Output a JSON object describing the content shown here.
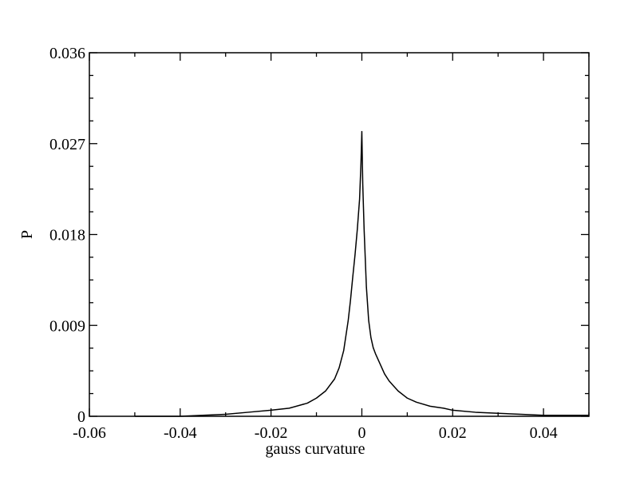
{
  "chart_data": {
    "type": "line",
    "title": "",
    "xlabel": "gauss curvature",
    "ylabel": "P",
    "xlim": [
      -0.06,
      0.05
    ],
    "ylim": [
      0,
      0.036
    ],
    "xticks": [
      -0.06,
      -0.04,
      -0.02,
      0,
      0.02,
      0.04
    ],
    "xtick_labels": [
      "-0.06",
      "-0.04",
      "-0.02",
      "0",
      "0.02",
      "0.04"
    ],
    "yticks": [
      0,
      0.009,
      0.018,
      0.027,
      0.036
    ],
    "ytick_labels": [
      "0",
      "0.009",
      "0.018",
      "0.027",
      "0.036"
    ],
    "grid": false,
    "line_color": "#000000",
    "series": [
      {
        "x": [
          -0.05,
          -0.04,
          -0.035,
          -0.03,
          -0.025,
          -0.02,
          -0.016,
          -0.012,
          -0.01,
          -0.008,
          -0.006,
          -0.005,
          -0.004,
          -0.003,
          -0.0025,
          -0.002,
          -0.0015,
          -0.001,
          -0.0005,
          -0.0002,
          0,
          0.0002,
          0.0005,
          0.001,
          0.0015,
          0.002,
          0.0025,
          0.003,
          0.004,
          0.005,
          0.006,
          0.007,
          0.008,
          0.01,
          0.012,
          0.015,
          0.018,
          0.02,
          0.025,
          0.03,
          0.035,
          0.04,
          0.045,
          0.05
        ],
        "values": [
          0.0,
          0.0,
          0.0001,
          0.0002,
          0.0004,
          0.0006,
          0.0008,
          0.0013,
          0.0018,
          0.0025,
          0.0037,
          0.0048,
          0.0065,
          0.0095,
          0.0115,
          0.0138,
          0.016,
          0.0185,
          0.0215,
          0.025,
          0.0282,
          0.023,
          0.0185,
          0.0128,
          0.0095,
          0.0078,
          0.0068,
          0.0062,
          0.0052,
          0.0042,
          0.0035,
          0.003,
          0.0025,
          0.0018,
          0.0014,
          0.001,
          0.0008,
          0.0006,
          0.0004,
          0.0003,
          0.0002,
          0.0001,
          0.0001,
          0.0001
        ]
      }
    ]
  }
}
